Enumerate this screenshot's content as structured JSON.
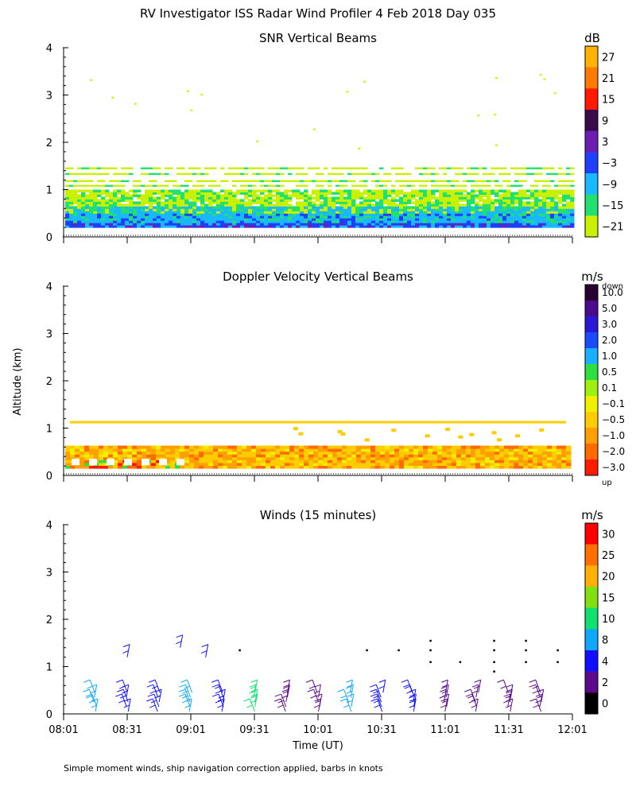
{
  "title": "RV Investigator ISS Radar Wind Profiler    4 Feb 2018 Day 035",
  "footer": "Simple moment winds, ship navigation correction applied, barbs in knots",
  "ylabel": "Altitude (km)",
  "xlabel": "Time (UT)",
  "x_ticks": [
    "08:01",
    "08:31",
    "09:01",
    "09:31",
    "10:01",
    "10:31",
    "11:01",
    "11:31",
    "12:01"
  ],
  "chart_data": [
    {
      "type": "heatmap",
      "title": "SNR Vertical Beams",
      "ylabel": "Altitude (km)",
      "ylim": [
        0,
        4
      ],
      "y_ticks": [
        "0",
        "1",
        "2",
        "3",
        "4"
      ],
      "colorbar": {
        "unit": "dB",
        "labels": [
          "27",
          "21",
          "15",
          "9",
          "3",
          "−3",
          "−9",
          "−15",
          "−21"
        ],
        "colors": [
          "#ffb300",
          "#ff7a00",
          "#ff1a00",
          "#3a0a4a",
          "#6a1fb0",
          "#1f3fff",
          "#19b8ff",
          "#20e070",
          "#c8f000"
        ]
      },
      "bands_km": [
        {
          "from": 0.2,
          "to": 0.6,
          "level": "−3 to −9"
        },
        {
          "from": 0.6,
          "to": 1.0,
          "level": "−15 to −21"
        },
        {
          "from": 1.0,
          "to": 1.55,
          "level": "−21"
        }
      ]
    },
    {
      "type": "heatmap",
      "title": "Doppler Velocity Vertical Beams",
      "ylabel": "Altitude (km)",
      "ylim": [
        0,
        4
      ],
      "y_ticks": [
        "0",
        "1",
        "2",
        "3",
        "4"
      ],
      "colorbar": {
        "unit": "m/s",
        "top_label": "down",
        "bottom_label": "up",
        "labels": [
          "10.0",
          "5.0",
          "3.0",
          "2.0",
          "1.0",
          "0.5",
          "0.1",
          "−0.1",
          "−0.5",
          "−1.0",
          "−2.0",
          "−3.0"
        ],
        "colors": [
          "#2a0030",
          "#4a0c8c",
          "#2a18d8",
          "#1a4cff",
          "#1ab0ff",
          "#2de040",
          "#a0ee10",
          "#f0f000",
          "#ffcc00",
          "#ffa000",
          "#ff6a00",
          "#ff1a00"
        ]
      },
      "bands_km": [
        {
          "from": 0.15,
          "to": 0.65,
          "level": "−0.5 to −2.0"
        },
        {
          "from": 1.1,
          "to": 1.15,
          "level": "−0.5"
        }
      ]
    },
    {
      "type": "scatter",
      "title": "Winds (15 minutes)",
      "ylabel": "Altitude (km)",
      "ylim": [
        0,
        4
      ],
      "y_ticks": [
        "0",
        "1",
        "2",
        "3",
        "4"
      ],
      "colorbar": {
        "unit": "m/s",
        "labels": [
          "30",
          "25",
          "20",
          "15",
          "10",
          "8",
          "4",
          "2",
          "0"
        ],
        "colors": [
          "#ff0000",
          "#ff7000",
          "#ffb000",
          "#80e010",
          "#10e070",
          "#10a8ff",
          "#1010ff",
          "#5a0a8a",
          "#000000"
        ]
      },
      "columns_time": [
        "08:16",
        "08:31",
        "08:46",
        "09:01",
        "09:16",
        "09:31",
        "09:46",
        "10:01",
        "10:16",
        "10:31",
        "10:46",
        "11:01",
        "11:16",
        "11:31",
        "11:46"
      ],
      "column_speed_ms": [
        8,
        4,
        4,
        8,
        4,
        10,
        2,
        2,
        8,
        4,
        4,
        2,
        2,
        2,
        2
      ],
      "upper_barbs": [
        {
          "time": "08:31",
          "alt_km": 1.2,
          "speed_ms": 4
        },
        {
          "time": "08:56",
          "alt_km": 1.4,
          "speed_ms": 4
        },
        {
          "time": "09:08",
          "alt_km": 1.2,
          "speed_ms": 4
        }
      ],
      "calm_points": [
        {
          "time": "09:24",
          "alt_km": 1.35
        },
        {
          "time": "10:24",
          "alt_km": 1.35
        },
        {
          "time": "10:39",
          "alt_km": 1.35
        },
        {
          "time": "10:54",
          "alt_km": 1.55
        },
        {
          "time": "10:54",
          "alt_km": 1.35
        },
        {
          "time": "10:54",
          "alt_km": 1.1
        },
        {
          "time": "11:08",
          "alt_km": 1.1
        },
        {
          "time": "11:24",
          "alt_km": 1.55
        },
        {
          "time": "11:24",
          "alt_km": 1.35
        },
        {
          "time": "11:24",
          "alt_km": 1.1
        },
        {
          "time": "11:24",
          "alt_km": 0.9
        },
        {
          "time": "11:39",
          "alt_km": 1.55
        },
        {
          "time": "11:39",
          "alt_km": 1.35
        },
        {
          "time": "11:39",
          "alt_km": 1.1
        },
        {
          "time": "11:54",
          "alt_km": 1.35
        },
        {
          "time": "11:54",
          "alt_km": 1.1
        }
      ]
    }
  ]
}
